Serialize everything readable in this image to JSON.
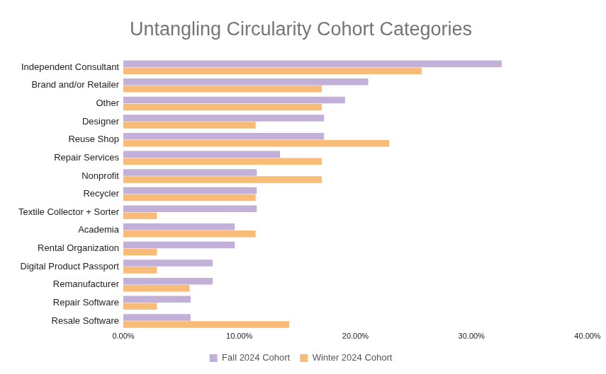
{
  "chart_data": {
    "type": "bar",
    "orientation": "horizontal",
    "title": "Untangling Circularity Cohort Categories",
    "categories": [
      "Independent Consultant",
      "Brand and/or Retailer",
      "Other",
      "Designer",
      "Reuse Shop",
      "Repair Services",
      "Nonprofit",
      "Recycler",
      "Textile Collector + Sorter",
      "Academia",
      "Rental Organization",
      "Digital Product Passport",
      "Remanufacturer",
      "Repair Software",
      "Resale Software"
    ],
    "series": [
      {
        "name": "Fall 2024 Cohort",
        "color": "#c3b0d8",
        "values": [
          32.6,
          21.1,
          19.1,
          17.3,
          17.3,
          13.5,
          11.5,
          11.5,
          11.5,
          9.6,
          9.6,
          7.7,
          7.7,
          5.8,
          5.8
        ]
      },
      {
        "name": "Winter 2024 Cohort",
        "color": "#f9bb78",
        "values": [
          25.7,
          17.1,
          17.1,
          11.4,
          22.9,
          17.1,
          17.1,
          11.4,
          2.9,
          11.4,
          2.9,
          2.9,
          5.7,
          2.9,
          14.3
        ]
      }
    ],
    "xlim": [
      0,
      40
    ],
    "xticks": [
      {
        "value": 0,
        "label": "0.00%"
      },
      {
        "value": 10,
        "label": "10.00%"
      },
      {
        "value": 20,
        "label": "20.00%"
      },
      {
        "value": 30,
        "label": "30.00%"
      },
      {
        "value": 40,
        "label": "40.00%"
      }
    ],
    "grid": false,
    "legend": "bottom"
  }
}
